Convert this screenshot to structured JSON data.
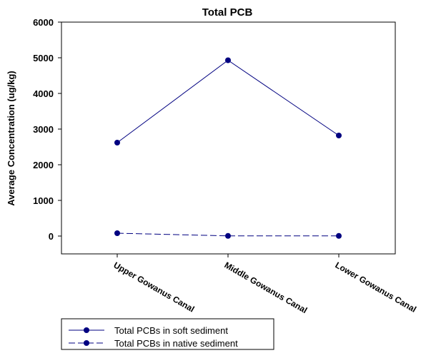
{
  "chart_data": {
    "type": "line",
    "title": "Total PCB",
    "xlabel": "",
    "ylabel": "Average Concentration (ug/kg)",
    "ylim": [
      -500,
      6000
    ],
    "yticks": [
      0,
      1000,
      2000,
      3000,
      4000,
      5000,
      6000
    ],
    "grid": false,
    "legend_position": "bottom-left",
    "categories": [
      "Upper Gowanus Canal",
      "Middle Gowanus Canal",
      "Lower Gowanus Canal"
    ],
    "series": [
      {
        "name": "Total PCBs in soft sediment",
        "values": [
          2620,
          4930,
          2820
        ],
        "line_style": "solid",
        "marker": "circle",
        "color": "#000080"
      },
      {
        "name": "Total PCBs in native sediment",
        "values": [
          80,
          5,
          5
        ],
        "line_style": "dashed",
        "marker": "circle",
        "color": "#000080"
      }
    ]
  }
}
